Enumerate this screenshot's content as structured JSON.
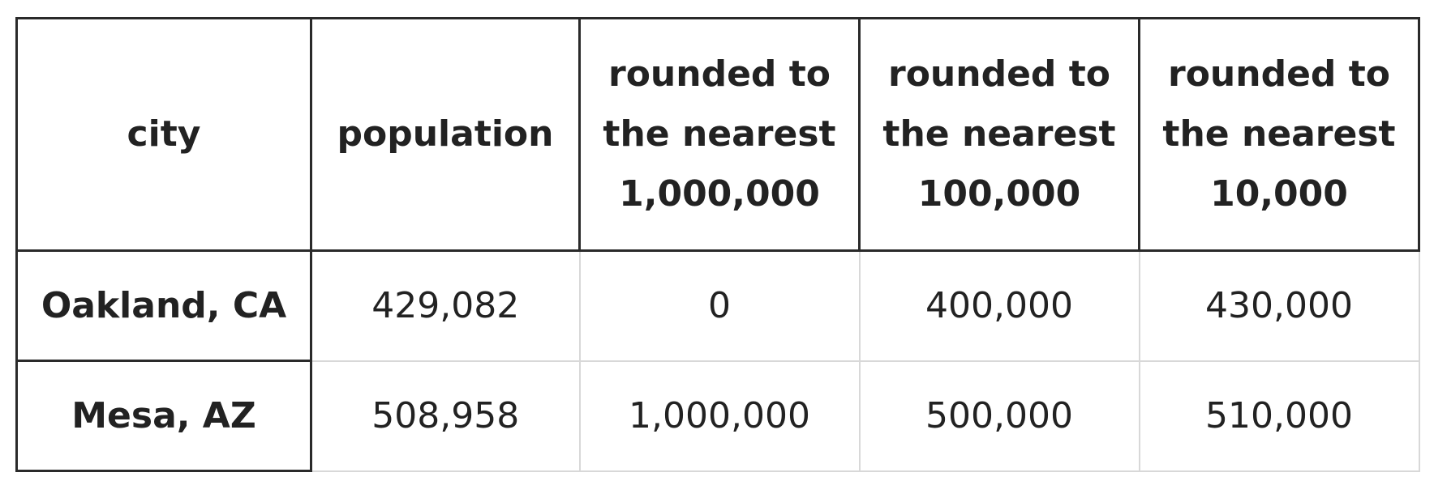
{
  "table": {
    "headers": [
      "city",
      "population",
      "rounded to the nearest 1,000,000",
      "rounded to the nearest 100,000",
      "rounded to the nearest 10,000"
    ],
    "rows": [
      [
        "Oakland, CA",
        "429,082",
        "0",
        "400,000",
        "430,000"
      ],
      [
        "Mesa, AZ",
        "508,958",
        "1,000,000",
        "500,000",
        "510,000"
      ]
    ]
  }
}
